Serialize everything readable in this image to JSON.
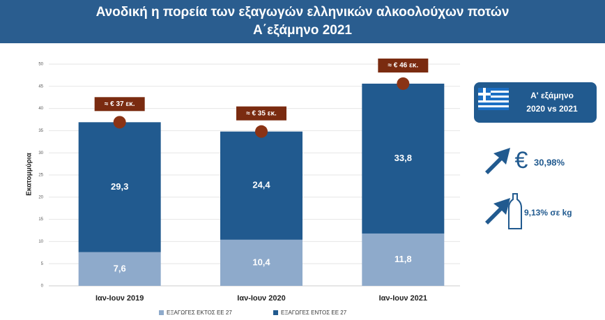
{
  "chart_data": {
    "type": "stacked_bar",
    "title_lines": [
      "Ανοδική η πορεία των εξαγωγών ελληνικών αλκοολούχων  ποτών",
      "Α΄εξάμηνο 2021"
    ],
    "y_label": "Εκατομμύρια",
    "categories": [
      "Ιαν-Ιουν 2019",
      "Ιαν-Ιουν 2020",
      "Ιαν-Ιουν 2021"
    ],
    "series": [
      {
        "name": "ΕΞΑΓΩΓΕΣ ΕΚΤΟΣ ΕΕ 27",
        "color": "#8eaacb",
        "values": [
          7.6,
          10.4,
          11.8
        ],
        "value_labels": [
          "7,6",
          "10,4",
          "11,8"
        ]
      },
      {
        "name": "ΕΞΑΓΩΓΕΣ ΕΝΤΟΣ ΕΕ 27",
        "color": "#215a8f",
        "values": [
          29.3,
          24.4,
          33.8
        ],
        "value_labels": [
          "29,3",
          "24,4",
          "33,8"
        ]
      }
    ],
    "total_labels": [
      "≈ € 37 εκ.",
      "≈ € 35 εκ.",
      "≈ € 46 εκ."
    ],
    "ylim": [
      0,
      50
    ],
    "yticks": [
      0,
      5,
      10,
      15,
      20,
      25,
      30,
      35,
      40,
      45,
      50
    ],
    "grid": true,
    "side_panel": {
      "title_lines": [
        "Α' εξάμηνο",
        "2020 vs 2021"
      ],
      "currency_symbol": "€",
      "stats": [
        "30,98%",
        "9,13% σε kg"
      ]
    }
  }
}
